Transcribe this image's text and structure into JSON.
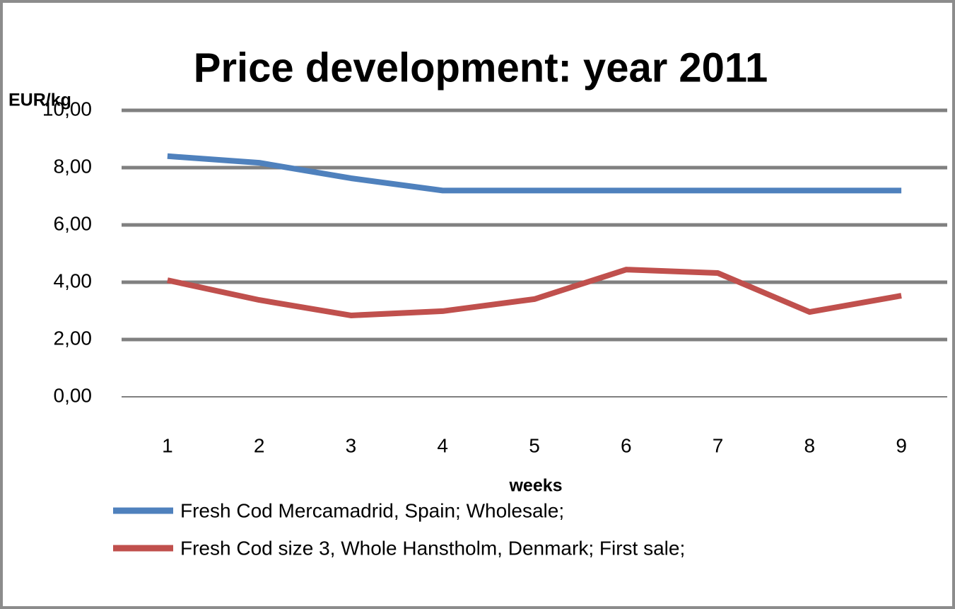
{
  "chart_data": {
    "type": "line",
    "title": "Price development: year 2011",
    "y_label": "EUR/kg",
    "x_label": "weeks",
    "categories": [
      "1",
      "2",
      "3",
      "4",
      "5",
      "6",
      "7",
      "8",
      "9"
    ],
    "series": [
      {
        "name": "Fresh Cod Mercamadrid, Spain; Wholesale;",
        "color": "#4f81bd",
        "values": [
          8.4,
          8.17,
          7.63,
          7.2,
          7.2,
          7.2,
          7.2,
          7.2,
          7.2
        ]
      },
      {
        "name": "Fresh Cod size 3, Whole Hanstholm, Denmark; First sale;",
        "color": "#c0504d",
        "values": [
          4.07,
          3.38,
          2.84,
          2.99,
          3.41,
          4.44,
          4.32,
          2.96,
          3.53
        ]
      }
    ],
    "ylim": [
      0,
      10
    ],
    "yticks": [
      {
        "value": 0,
        "label": "0,00"
      },
      {
        "value": 2,
        "label": "2,00"
      },
      {
        "value": 4,
        "label": "4,00"
      },
      {
        "value": 6,
        "label": "6,00"
      },
      {
        "value": 8,
        "label": "8,00"
      },
      {
        "value": 10,
        "label": "10,00"
      }
    ],
    "grid": true,
    "legend": "bottom"
  }
}
